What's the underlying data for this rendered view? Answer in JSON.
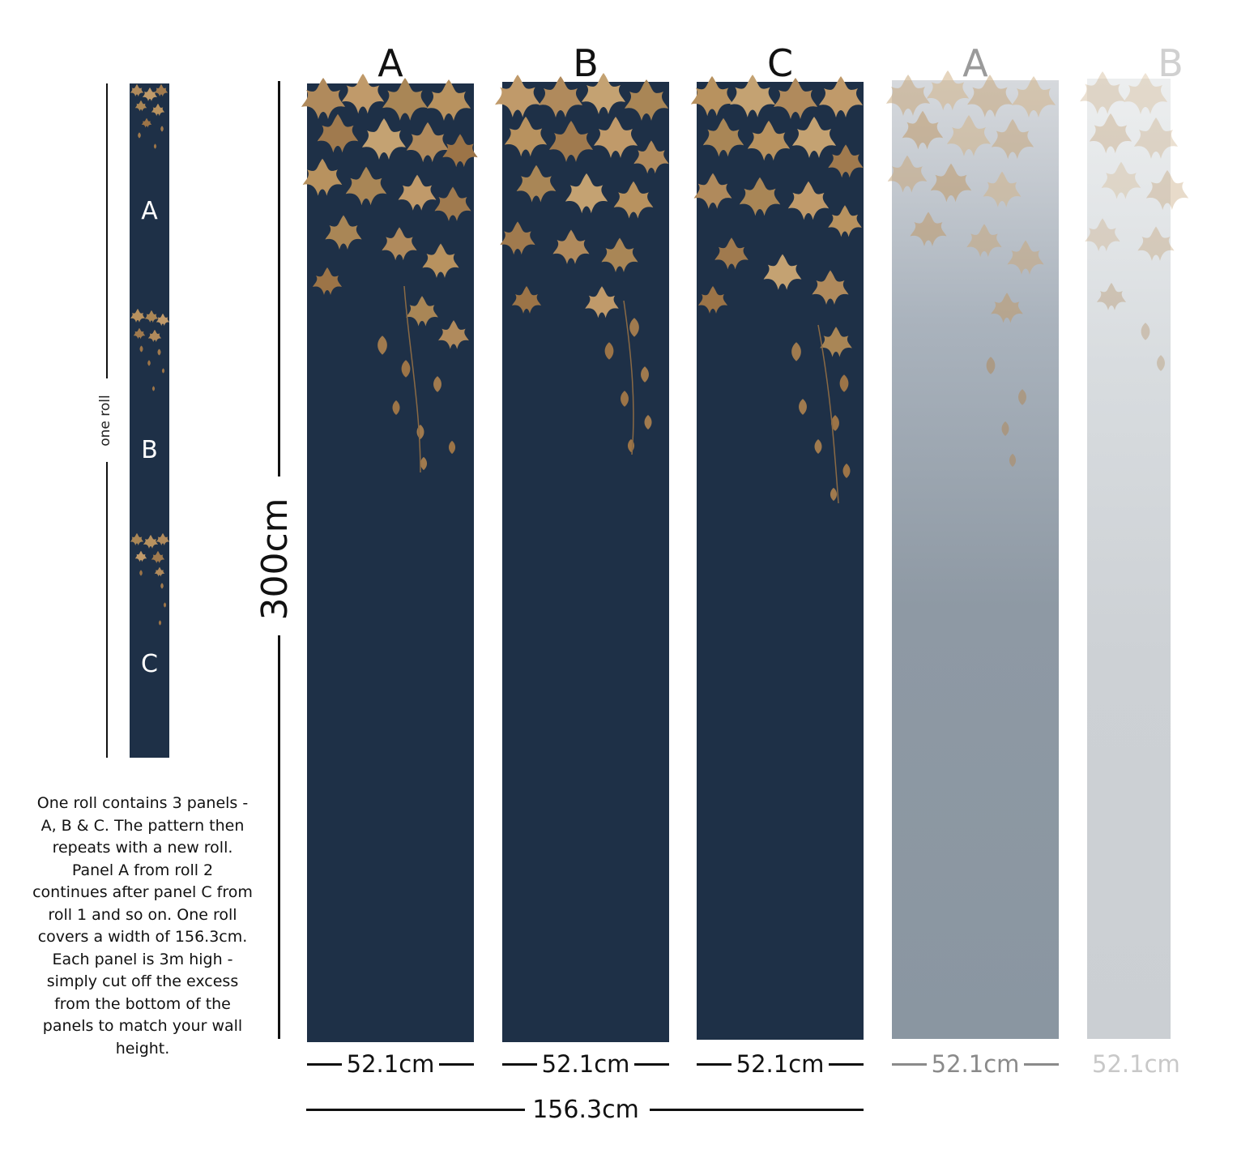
{
  "roll_preview": {
    "label": "one roll",
    "panels": [
      "A",
      "B",
      "C"
    ]
  },
  "description": "One roll contains 3 panels - A, B & C. The pattern then repeats with a new roll. Panel A from roll 2 continues after panel C from roll 1 and so on. One roll covers a width of 156.3cm. Each panel is 3m high - simply cut off the excess from the bottom of the panels to match your wall height.",
  "height_label": "300cm",
  "panels": [
    {
      "letter": "A",
      "width": "52.1cm"
    },
    {
      "letter": "B",
      "width": "52.1cm"
    },
    {
      "letter": "C",
      "width": "52.1cm"
    },
    {
      "letter": "A",
      "width": "52.1cm"
    },
    {
      "letter": "B",
      "width": "52.1cm"
    }
  ],
  "total_width": "156.3cm",
  "colors": {
    "navy": "#1e3047",
    "leaf": "#b08a5c",
    "faded_1": "#8e99a4",
    "faded_2": "#cdd1d5"
  }
}
